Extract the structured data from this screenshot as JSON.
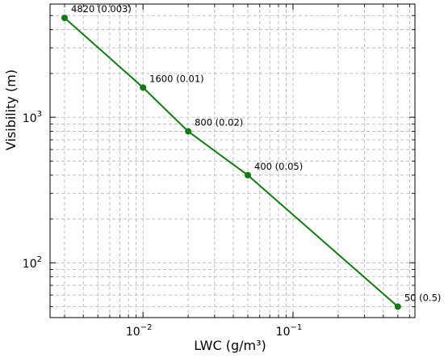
{
  "chart_data": {
    "type": "line",
    "title": "",
    "xlabel": "LWC (g/m³)",
    "ylabel": "Visibility (m)",
    "xscale": "log",
    "yscale": "log",
    "xlim": [
      0.0024,
      0.65
    ],
    "ylim": [
      42,
      6000
    ],
    "grid": true,
    "line_color": "#117a11",
    "x_ticks": [
      {
        "value": 0.01,
        "label": "10",
        "exp": "−2"
      },
      {
        "value": 0.1,
        "label": "10",
        "exp": "−1"
      }
    ],
    "y_ticks": [
      {
        "value": 100,
        "label": "10",
        "exp": "2"
      },
      {
        "value": 1000,
        "label": "10",
        "exp": "3"
      }
    ],
    "series": [
      {
        "points": [
          {
            "x": 0.003,
            "y": 4820,
            "label": "4820 (0.003)"
          },
          {
            "x": 0.01,
            "y": 1600,
            "label": "1600 (0.01)"
          },
          {
            "x": 0.02,
            "y": 800,
            "label": "800 (0.02)"
          },
          {
            "x": 0.05,
            "y": 400,
            "label": "400 (0.05)"
          },
          {
            "x": 0.5,
            "y": 50,
            "label": "50 (0.5)"
          }
        ]
      }
    ]
  }
}
